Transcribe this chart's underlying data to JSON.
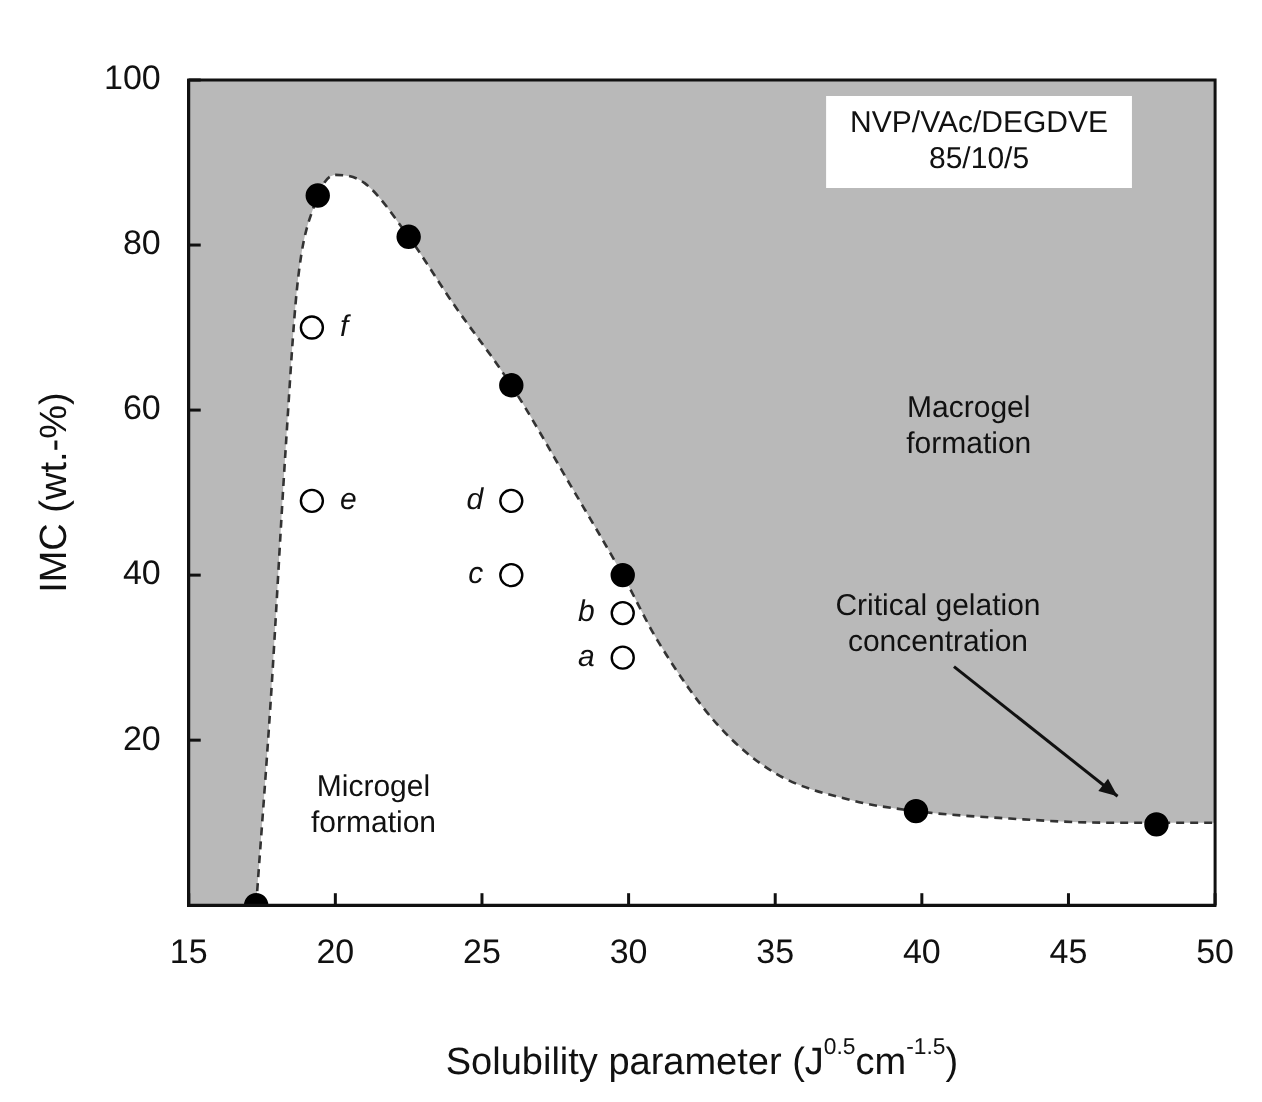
{
  "chart_data": {
    "type": "scatter",
    "xlabel": "Solubility parameter (J$^{0.5}$cm$^{-1.5}$)",
    "ylabel": "IMC (wt.-%)",
    "xlim": [
      15,
      50
    ],
    "xticks": [
      15,
      20,
      25,
      30,
      35,
      40,
      45,
      50
    ],
    "ylim": [
      0,
      100
    ],
    "yticks": [
      20,
      40,
      60,
      80,
      100
    ],
    "legend": false,
    "series": [
      {
        "type": "area",
        "color": "#333333",
        "marker": "none",
        "line_style": "dashed",
        "x": [
          17.3,
          17.8,
          18.3,
          18.7,
          19.3,
          20,
          21,
          22.5,
          24,
          26,
          28,
          29.8,
          31,
          33,
          35,
          37.5,
          39.8,
          43,
          46.3,
          50
        ],
        "values": [
          0,
          25,
          55,
          75,
          85,
          88.5,
          87.5,
          81,
          73,
          63,
          51,
          40,
          32,
          22,
          16,
          12.8,
          11.4,
          10.5,
          10,
          10
        ]
      },
      {
        "color": "#000000",
        "marker": "circle",
        "x": [
          17.3,
          19.4,
          22.5,
          26,
          29.8,
          39.8,
          48
        ],
        "values": [
          0,
          86,
          81,
          63,
          40,
          11.4,
          9.8
        ]
      },
      {
        "color": "#ffffff",
        "marker": "circle",
        "x": [
          29.8,
          29.8,
          26,
          26,
          19.2,
          19.2
        ],
        "values": [
          30,
          35.4,
          40,
          49,
          49,
          70
        ]
      }
    ],
    "annotations": [
      "NVP/VAc/DEGDVE\n85/10/5",
      "Macrogel\nformation",
      "Microgel\nformation",
      "Critical gelation\nconcentration",
      {
        "text": "a",
        "x": 29.8,
        "y": 30
      },
      {
        "text": "b",
        "x": 29.8,
        "y": 35.4
      },
      {
        "text": "c",
        "x": 26,
        "y": 40
      },
      {
        "text": "d",
        "x": 26,
        "y": 49
      },
      {
        "text": "e",
        "x": 19.2,
        "y": 49
      },
      {
        "text": "f",
        "x": 19.2,
        "y": 70
      }
    ]
  }
}
